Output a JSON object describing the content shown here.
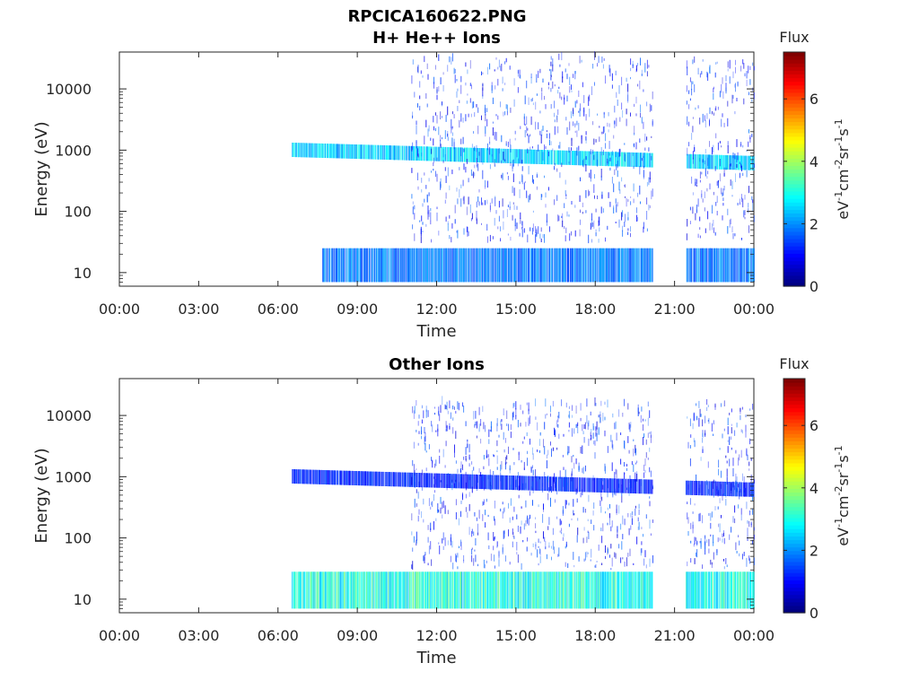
{
  "figure_title": "RPCICA160622.PNG",
  "time_axis": {
    "label": "Time",
    "ticks": [
      "00:00",
      "03:00",
      "06:00",
      "09:00",
      "12:00",
      "15:00",
      "18:00",
      "21:00",
      "00:00"
    ]
  },
  "energy_axis": {
    "label": "Energy (eV)",
    "scale": "log",
    "ticks": [
      "10",
      "100",
      "1000",
      "10000"
    ]
  },
  "colorbar": {
    "title": "Flux",
    "unit_label": "eV-1cm-2sr-1s-1",
    "ticks": [
      "0",
      "2",
      "4",
      "6"
    ],
    "colormap": "jet",
    "range": [
      0,
      7.5
    ]
  },
  "chart_data": [
    {
      "type": "heatmap",
      "title": "H+ He++ Ions",
      "xlabel": "Time",
      "ylabel": "Energy (eV)",
      "xlim": [
        "00:00",
        "24:00"
      ],
      "ylim": [
        6,
        40000
      ],
      "yscale": "log",
      "data_gaps": [
        [
          "00:00",
          "06:30"
        ],
        [
          "20:10",
          "21:25"
        ]
      ],
      "features": [
        {
          "name": "main ion band",
          "time": [
            "06:30",
            "24:00"
          ],
          "energy_eV": [
            700,
            1200
          ],
          "flux": 2.5
        },
        {
          "name": "low-energy band",
          "time": [
            "07:40",
            "24:00"
          ],
          "energy_eV": [
            7,
            25
          ],
          "flux": 1.8
        },
        {
          "name": "high-energy scatter",
          "time": [
            "11:00",
            "24:00"
          ],
          "energy_eV": [
            30,
            30000
          ],
          "flux": 1.0
        }
      ]
    },
    {
      "type": "heatmap",
      "title": "Other Ions",
      "xlabel": "Time",
      "ylabel": "Energy (eV)",
      "xlim": [
        "00:00",
        "24:00"
      ],
      "ylim": [
        6,
        40000
      ],
      "yscale": "log",
      "data_gaps": [
        [
          "00:00",
          "06:30"
        ],
        [
          "20:10",
          "21:25"
        ]
      ],
      "features": [
        {
          "name": "main ion band",
          "time": [
            "06:30",
            "24:00"
          ],
          "energy_eV": [
            700,
            1200
          ],
          "flux": 1.2
        },
        {
          "name": "low-energy band",
          "time": [
            "06:30",
            "24:00"
          ],
          "energy_eV": [
            7,
            28
          ],
          "flux": 3.0
        },
        {
          "name": "high-energy scatter",
          "time": [
            "11:00",
            "24:00"
          ],
          "energy_eV": [
            30,
            15000
          ],
          "flux": 1.0
        }
      ]
    }
  ]
}
